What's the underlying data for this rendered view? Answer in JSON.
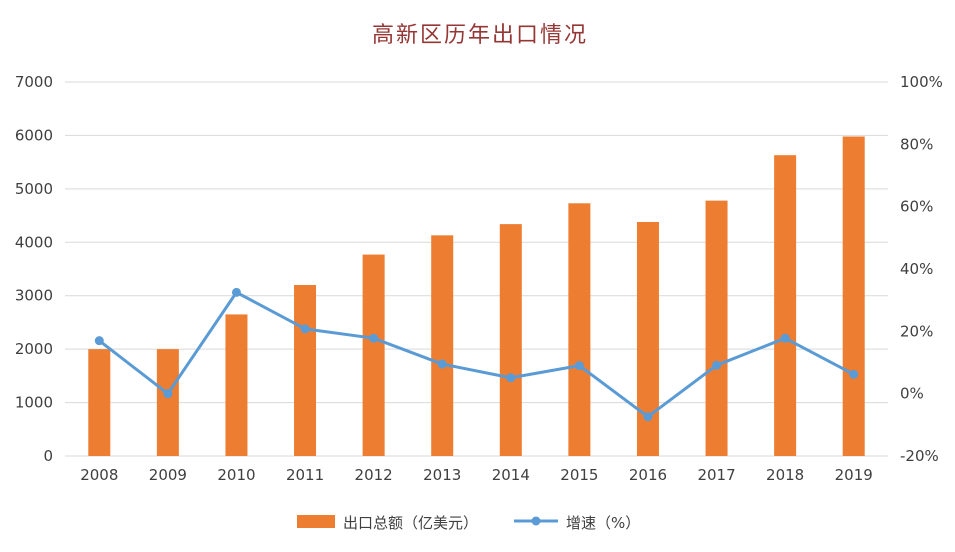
{
  "colors": {
    "bar": "#ED7D31",
    "line": "#5B9BD5",
    "title": "#953735",
    "axis_text": "#404040",
    "gridline": "#D9D9D9",
    "background": "#FFFFFF"
  },
  "chart_data": {
    "type": "bar+line",
    "title": "高新区历年出口情况",
    "categories": [
      "2008",
      "2009",
      "2010",
      "2011",
      "2012",
      "2013",
      "2014",
      "2015",
      "2016",
      "2017",
      "2018",
      "2019"
    ],
    "series": [
      {
        "name": "出口总额（亿美元）",
        "type": "bar",
        "axis": "left",
        "values": [
          2000,
          2000,
          2650,
          3200,
          3770,
          4130,
          4340,
          4730,
          4380,
          4780,
          5630,
          5980
        ]
      },
      {
        "name": "增速（%）",
        "type": "line",
        "axis": "right",
        "values": [
          17,
          0,
          32.5,
          20.8,
          17.8,
          9.5,
          5.1,
          9.0,
          -7.4,
          9.1,
          17.8,
          6.2
        ]
      }
    ],
    "left_axis": {
      "min": 0,
      "max": 7000,
      "step": 1000,
      "tick_values": [
        0,
        1000,
        2000,
        3000,
        4000,
        5000,
        6000,
        7000
      ],
      "tick_labels": [
        "0",
        "1000",
        "2000",
        "3000",
        "4000",
        "5000",
        "6000",
        "7000"
      ]
    },
    "right_axis": {
      "min": -20,
      "max": 100,
      "step": 20,
      "tick_values": [
        -20,
        0,
        20,
        40,
        60,
        80,
        100
      ],
      "tick_labels": [
        "-20%",
        "0%",
        "20%",
        "40%",
        "60%",
        "80%",
        "100%"
      ]
    },
    "grid": true,
    "legend_position": "bottom"
  }
}
